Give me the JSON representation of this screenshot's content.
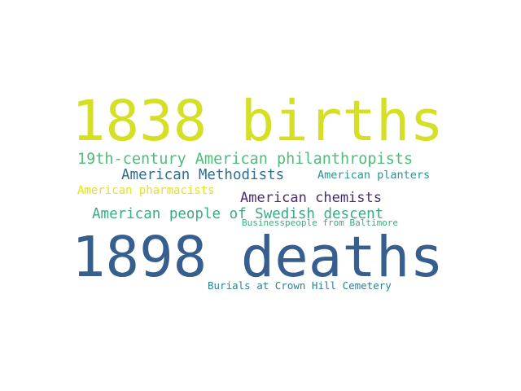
{
  "words": [
    {
      "text": "1838 births",
      "color": "#d4df26"
    },
    {
      "text": "19th-century American philanthropists",
      "color": "#4fbd7a"
    },
    {
      "text": "American Methodists",
      "color": "#2d6f8d"
    },
    {
      "text": "American planters",
      "color": "#29958b"
    },
    {
      "text": "American pharmacists",
      "color": "#e3e31f"
    },
    {
      "text": "American chemists",
      "color": "#4b2b6e"
    },
    {
      "text": "American people of Swedish descent",
      "color": "#3aab83"
    },
    {
      "text": "Businesspeople from Baltimore",
      "color": "#39ad7f"
    },
    {
      "text": "1898 deaths",
      "color": "#365f8f"
    },
    {
      "text": "Burials at Crown Hill Cemetery",
      "color": "#2e8192"
    }
  ]
}
